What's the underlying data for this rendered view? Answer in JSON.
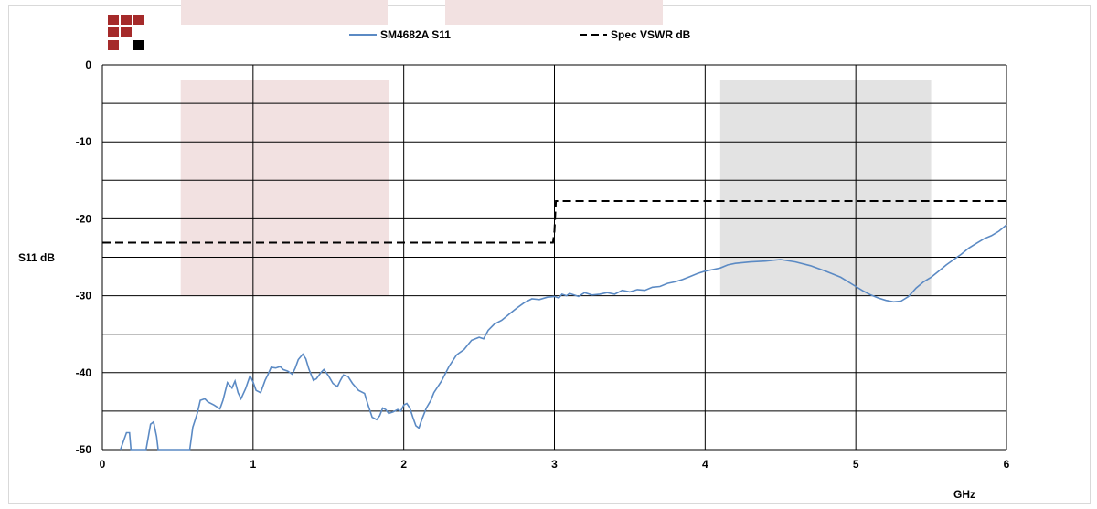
{
  "chart_data": {
    "type": "line",
    "xlabel": "GHz",
    "ylabel": "S11 dB",
    "xlim": [
      0,
      6
    ],
    "ylim": [
      -50,
      0
    ],
    "x_ticks": [
      "0",
      "1",
      "2",
      "3",
      "4",
      "5",
      "6"
    ],
    "y_ticks": [
      "0",
      "-10",
      "-20",
      "-30",
      "-40",
      "-50"
    ],
    "grid": true,
    "legend_position": "top-center",
    "shaded_regions": [
      {
        "x": [
          0.52,
          1.9
        ],
        "y": [
          -30,
          -2
        ],
        "color": "#f2e1e1"
      },
      {
        "x": [
          4.1,
          5.5
        ],
        "y": [
          -30,
          -2
        ],
        "color": "#e3e3e3"
      }
    ],
    "series": [
      {
        "name": "SM4682A S11",
        "color": "#5b8ac4",
        "style": "solid",
        "points": [
          [
            0.12,
            -50
          ],
          [
            0.16,
            -47.8
          ],
          [
            0.18,
            -47.8
          ],
          [
            0.19,
            -50
          ],
          [
            0.29,
            -50
          ],
          [
            0.32,
            -46.7
          ],
          [
            0.34,
            -46.4
          ],
          [
            0.36,
            -48.3
          ],
          [
            0.37,
            -50
          ],
          [
            0.58,
            -50
          ],
          [
            0.6,
            -47.1
          ],
          [
            0.63,
            -45.3
          ],
          [
            0.65,
            -43.6
          ],
          [
            0.68,
            -43.4
          ],
          [
            0.7,
            -43.8
          ],
          [
            0.74,
            -44.2
          ],
          [
            0.78,
            -44.7
          ],
          [
            0.8,
            -43.6
          ],
          [
            0.83,
            -41.3
          ],
          [
            0.86,
            -42.0
          ],
          [
            0.88,
            -41.1
          ],
          [
            0.9,
            -42.6
          ],
          [
            0.92,
            -43.4
          ],
          [
            0.95,
            -42.1
          ],
          [
            0.98,
            -40.4
          ],
          [
            1.0,
            -41.2
          ],
          [
            1.02,
            -42.3
          ],
          [
            1.05,
            -42.6
          ],
          [
            1.08,
            -41.0
          ],
          [
            1.1,
            -40.2
          ],
          [
            1.12,
            -39.3
          ],
          [
            1.15,
            -39.4
          ],
          [
            1.18,
            -39.2
          ],
          [
            1.2,
            -39.6
          ],
          [
            1.23,
            -39.8
          ],
          [
            1.26,
            -40.2
          ],
          [
            1.28,
            -39.4
          ],
          [
            1.3,
            -38.3
          ],
          [
            1.33,
            -37.6
          ],
          [
            1.35,
            -38.2
          ],
          [
            1.37,
            -39.5
          ],
          [
            1.4,
            -41.0
          ],
          [
            1.42,
            -40.8
          ],
          [
            1.45,
            -40.0
          ],
          [
            1.47,
            -39.6
          ],
          [
            1.5,
            -40.4
          ],
          [
            1.53,
            -41.4
          ],
          [
            1.56,
            -41.8
          ],
          [
            1.58,
            -41.0
          ],
          [
            1.6,
            -40.3
          ],
          [
            1.63,
            -40.5
          ],
          [
            1.66,
            -41.4
          ],
          [
            1.7,
            -42.3
          ],
          [
            1.74,
            -42.7
          ],
          [
            1.76,
            -44.0
          ],
          [
            1.79,
            -45.8
          ],
          [
            1.82,
            -46.1
          ],
          [
            1.84,
            -45.6
          ],
          [
            1.86,
            -44.6
          ],
          [
            1.88,
            -44.8
          ],
          [
            1.9,
            -45.3
          ],
          [
            1.93,
            -45.1
          ],
          [
            1.96,
            -44.8
          ],
          [
            1.98,
            -45.0
          ],
          [
            2.0,
            -44.2
          ],
          [
            2.02,
            -44.0
          ],
          [
            2.04,
            -44.6
          ],
          [
            2.06,
            -45.8
          ],
          [
            2.08,
            -46.9
          ],
          [
            2.1,
            -47.2
          ],
          [
            2.12,
            -46.1
          ],
          [
            2.15,
            -44.6
          ],
          [
            2.18,
            -43.6
          ],
          [
            2.2,
            -42.6
          ],
          [
            2.25,
            -41.1
          ],
          [
            2.3,
            -39.2
          ],
          [
            2.35,
            -37.7
          ],
          [
            2.4,
            -37.0
          ],
          [
            2.45,
            -35.8
          ],
          [
            2.5,
            -35.4
          ],
          [
            2.53,
            -35.6
          ],
          [
            2.56,
            -34.5
          ],
          [
            2.6,
            -33.7
          ],
          [
            2.65,
            -33.2
          ],
          [
            2.7,
            -32.4
          ],
          [
            2.75,
            -31.6
          ],
          [
            2.8,
            -30.9
          ],
          [
            2.85,
            -30.4
          ],
          [
            2.9,
            -30.5
          ],
          [
            2.95,
            -30.2
          ],
          [
            3.0,
            -30.1
          ],
          [
            3.03,
            -30.3
          ],
          [
            3.05,
            -29.8
          ],
          [
            3.08,
            -30.0
          ],
          [
            3.1,
            -29.7
          ],
          [
            3.13,
            -29.9
          ],
          [
            3.16,
            -30.1
          ],
          [
            3.2,
            -29.6
          ],
          [
            3.25,
            -29.9
          ],
          [
            3.3,
            -29.8
          ],
          [
            3.35,
            -29.6
          ],
          [
            3.4,
            -29.8
          ],
          [
            3.45,
            -29.3
          ],
          [
            3.5,
            -29.5
          ],
          [
            3.55,
            -29.2
          ],
          [
            3.6,
            -29.3
          ],
          [
            3.65,
            -28.9
          ],
          [
            3.7,
            -28.8
          ],
          [
            3.75,
            -28.4
          ],
          [
            3.8,
            -28.2
          ],
          [
            3.85,
            -27.9
          ],
          [
            3.9,
            -27.5
          ],
          [
            3.95,
            -27.1
          ],
          [
            4.0,
            -26.8
          ],
          [
            4.05,
            -26.6
          ],
          [
            4.1,
            -26.4
          ],
          [
            4.15,
            -26.0
          ],
          [
            4.2,
            -25.8
          ],
          [
            4.3,
            -25.6
          ],
          [
            4.4,
            -25.5
          ],
          [
            4.5,
            -25.3
          ],
          [
            4.6,
            -25.6
          ],
          [
            4.7,
            -26.1
          ],
          [
            4.8,
            -26.8
          ],
          [
            4.9,
            -27.6
          ],
          [
            5.0,
            -28.8
          ],
          [
            5.05,
            -29.4
          ],
          [
            5.1,
            -29.9
          ],
          [
            5.15,
            -30.3
          ],
          [
            5.2,
            -30.6
          ],
          [
            5.25,
            -30.8
          ],
          [
            5.3,
            -30.7
          ],
          [
            5.35,
            -30.1
          ],
          [
            5.4,
            -29.0
          ],
          [
            5.45,
            -28.2
          ],
          [
            5.5,
            -27.6
          ],
          [
            5.55,
            -26.8
          ],
          [
            5.6,
            -26.0
          ],
          [
            5.65,
            -25.3
          ],
          [
            5.7,
            -24.6
          ],
          [
            5.75,
            -23.8
          ],
          [
            5.8,
            -23.2
          ],
          [
            5.85,
            -22.6
          ],
          [
            5.9,
            -22.2
          ],
          [
            5.95,
            -21.6
          ],
          [
            6.0,
            -20.8
          ]
        ]
      },
      {
        "name": "Spec VSWR dB",
        "color": "#000000",
        "style": "dashed",
        "points": [
          [
            0.0,
            -23.1
          ],
          [
            2.99,
            -23.1
          ],
          [
            3.0,
            -21.6
          ],
          [
            3.01,
            -17.7
          ],
          [
            6.0,
            -17.7
          ]
        ]
      }
    ]
  },
  "logo": {
    "colors": [
      "#a52a2a",
      "#a52a2a",
      "#a52a2a",
      "#a52a2a",
      "#a52a2a",
      "#ffffff",
      "#a52a2a",
      "#ffffff",
      "#000000"
    ]
  }
}
